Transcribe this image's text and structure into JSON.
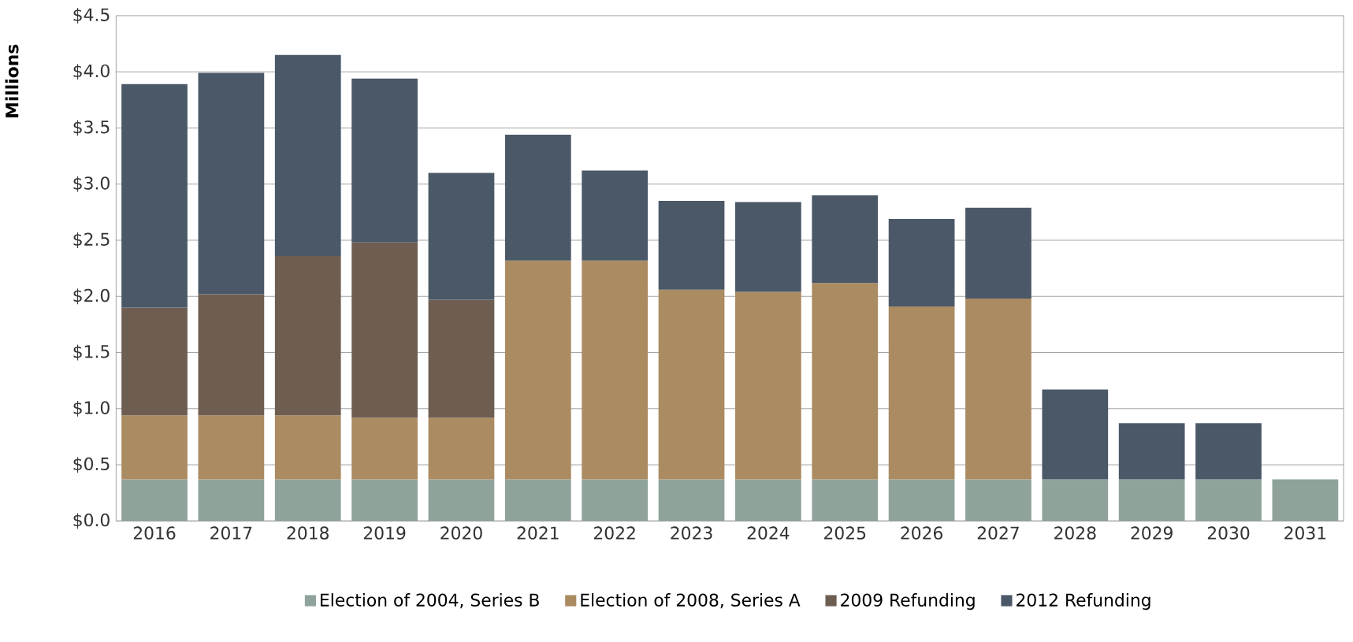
{
  "chart_data": {
    "type": "bar",
    "stacked": true,
    "ylabel": "Millions",
    "categories": [
      "2016",
      "2017",
      "2018",
      "2019",
      "2020",
      "2021",
      "2022",
      "2023",
      "2024",
      "2025",
      "2026",
      "2027",
      "2028",
      "2029",
      "2030",
      "2031"
    ],
    "series": [
      {
        "name": "Election of 2004, Series B",
        "color": "#8fa39a",
        "values": [
          0.37,
          0.37,
          0.37,
          0.37,
          0.37,
          0.37,
          0.37,
          0.37,
          0.37,
          0.37,
          0.37,
          0.37,
          0.37,
          0.37,
          0.37,
          0.37
        ]
      },
      {
        "name": "Election of 2008, Series A",
        "color": "#ab8b62",
        "values": [
          0.57,
          0.57,
          0.57,
          0.55,
          0.55,
          1.95,
          1.95,
          1.69,
          1.67,
          1.75,
          1.54,
          1.61,
          null,
          null,
          null,
          null
        ]
      },
      {
        "name": "2009 Refunding",
        "color": "#6e5e52",
        "values": [
          0.96,
          1.08,
          1.42,
          1.56,
          1.05,
          null,
          null,
          null,
          null,
          null,
          null,
          null,
          null,
          null,
          null,
          null
        ]
      },
      {
        "name": "2012 Refunding",
        "color": "#4a5868",
        "values": [
          1.99,
          1.97,
          1.79,
          1.46,
          1.13,
          1.12,
          0.8,
          0.79,
          0.8,
          0.78,
          0.78,
          0.81,
          0.8,
          0.5,
          0.5,
          null
        ]
      }
    ],
    "ylim": [
      0,
      4.5
    ],
    "yticks": [
      {
        "value": 0,
        "label": "$0.0"
      },
      {
        "value": 0.5,
        "label": "$0.5"
      },
      {
        "value": 1,
        "label": "$1.0"
      },
      {
        "value": 1.5,
        "label": "$1.5"
      },
      {
        "value": 2,
        "label": "$2.0"
      },
      {
        "value": 2.5,
        "label": "$2.5"
      },
      {
        "value": 3,
        "label": "$3.0"
      },
      {
        "value": 3.5,
        "label": "$3.5"
      },
      {
        "value": 4,
        "label": "$4.0"
      },
      {
        "value": 4.5,
        "label": "$4.5"
      }
    ],
    "grid": "y",
    "legend": "bottom"
  }
}
